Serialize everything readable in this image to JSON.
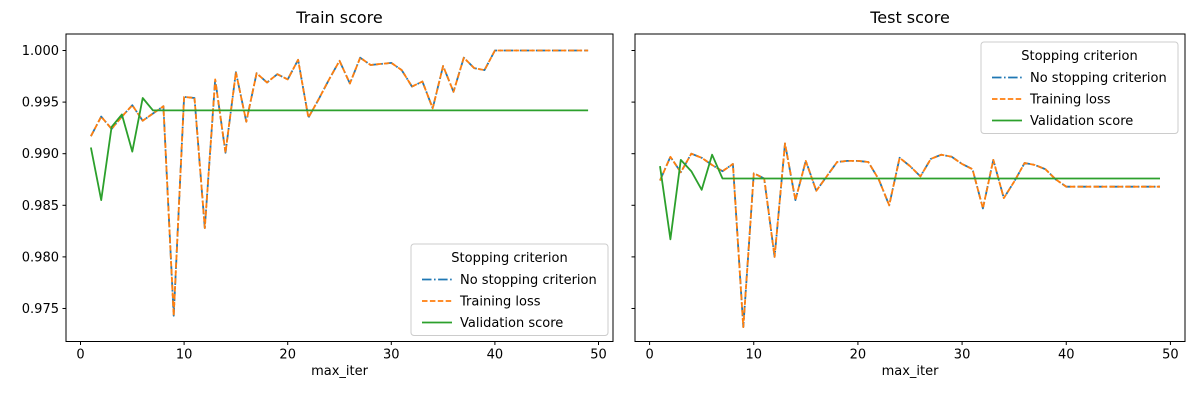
{
  "figure": {
    "background": "#ffffff",
    "text_color": "#000000",
    "spine_color": "#000000"
  },
  "chart_data": [
    {
      "type": "line",
      "title": "Train score",
      "xlabel": "max_iter",
      "ylabel": "",
      "grid": false,
      "xlim": [
        -1.4,
        51.4
      ],
      "ylim": [
        0.9718,
        1.0016
      ],
      "xticks": [
        0,
        10,
        20,
        30,
        40,
        50
      ],
      "yticks": [
        0.975,
        0.98,
        0.985,
        0.99,
        0.995,
        1.0
      ],
      "ytick_labels_visible": true,
      "legend": {
        "title": "Stopping criterion",
        "loc": "lower right"
      },
      "x": [
        1,
        2,
        3,
        4,
        5,
        6,
        7,
        8,
        9,
        10,
        11,
        12,
        13,
        14,
        15,
        16,
        17,
        18,
        19,
        20,
        21,
        22,
        23,
        24,
        25,
        26,
        27,
        28,
        29,
        30,
        31,
        32,
        33,
        34,
        35,
        36,
        37,
        38,
        39,
        40,
        41,
        42,
        43,
        44,
        45,
        46,
        47,
        48,
        49
      ],
      "series": [
        {
          "name": "No stopping criterion",
          "color": "#1f77b4",
          "linestyle": "dashdot",
          "values": [
            0.9917,
            0.9936,
            0.9924,
            0.9936,
            0.9947,
            0.9932,
            0.9939,
            0.9946,
            0.9743,
            0.9955,
            0.9954,
            0.9828,
            0.9972,
            0.9901,
            0.9979,
            0.9931,
            0.9978,
            0.9969,
            0.9977,
            0.9972,
            0.9991,
            0.9935,
            0.9953,
            0.9972,
            0.999,
            0.9968,
            0.9993,
            0.9986,
            0.9987,
            0.9988,
            0.9981,
            0.9965,
            0.997,
            0.9944,
            0.9985,
            0.996,
            0.9993,
            0.9983,
            0.9981,
            1.0,
            1.0,
            1.0,
            1.0,
            1.0,
            1.0,
            1.0,
            1.0,
            1.0,
            1.0
          ]
        },
        {
          "name": "Training loss",
          "color": "#ff7f0e",
          "linestyle": "dashed",
          "values": [
            0.9917,
            0.9936,
            0.9924,
            0.9936,
            0.9947,
            0.9932,
            0.9939,
            0.9946,
            0.9743,
            0.9955,
            0.9954,
            0.9828,
            0.9972,
            0.9901,
            0.9979,
            0.9931,
            0.9978,
            0.9969,
            0.9977,
            0.9972,
            0.9991,
            0.9935,
            0.9953,
            0.9972,
            0.999,
            0.9968,
            0.9993,
            0.9986,
            0.9987,
            0.9988,
            0.9981,
            0.9965,
            0.997,
            0.9944,
            0.9985,
            0.996,
            0.9993,
            0.9983,
            0.9981,
            1.0,
            1.0,
            1.0,
            1.0,
            1.0,
            1.0,
            1.0,
            1.0,
            1.0,
            1.0
          ]
        },
        {
          "name": "Validation score",
          "color": "#2ca02c",
          "linestyle": "solid",
          "values": [
            0.9906,
            0.9855,
            0.9926,
            0.9938,
            0.9902,
            0.9954,
            0.9942,
            0.9942,
            0.9942,
            0.9942,
            0.9942,
            0.9942,
            0.9942,
            0.9942,
            0.9942,
            0.9942,
            0.9942,
            0.9942,
            0.9942,
            0.9942,
            0.9942,
            0.9942,
            0.9942,
            0.9942,
            0.9942,
            0.9942,
            0.9942,
            0.9942,
            0.9942,
            0.9942,
            0.9942,
            0.9942,
            0.9942,
            0.9942,
            0.9942,
            0.9942,
            0.9942,
            0.9942,
            0.9942,
            0.9942,
            0.9942,
            0.9942,
            0.9942,
            0.9942,
            0.9942,
            0.9942,
            0.9942,
            0.9942,
            0.9942
          ]
        }
      ]
    },
    {
      "type": "line",
      "title": "Test score",
      "xlabel": "max_iter",
      "ylabel": "",
      "grid": false,
      "xlim": [
        -1.4,
        51.4
      ],
      "ylim": [
        0.9718,
        1.0016
      ],
      "xticks": [
        0,
        10,
        20,
        30,
        40,
        50
      ],
      "yticks": [
        0.975,
        0.98,
        0.985,
        0.99,
        0.995,
        1.0
      ],
      "ytick_labels_visible": false,
      "legend": {
        "title": "Stopping criterion",
        "loc": "upper right"
      },
      "x": [
        1,
        2,
        3,
        4,
        5,
        6,
        7,
        8,
        9,
        10,
        11,
        12,
        13,
        14,
        15,
        16,
        17,
        18,
        19,
        20,
        21,
        22,
        23,
        24,
        25,
        26,
        27,
        28,
        29,
        30,
        31,
        32,
        33,
        34,
        35,
        36,
        37,
        38,
        39,
        40,
        41,
        42,
        43,
        44,
        45,
        46,
        47,
        48,
        49
      ],
      "series": [
        {
          "name": "No stopping criterion",
          "color": "#1f77b4",
          "linestyle": "dashdot",
          "values": [
            0.9874,
            0.9897,
            0.9882,
            0.99,
            0.9896,
            0.9889,
            0.9883,
            0.989,
            0.9732,
            0.9881,
            0.9876,
            0.98,
            0.991,
            0.9855,
            0.9893,
            0.9864,
            0.9878,
            0.9892,
            0.9893,
            0.9893,
            0.9892,
            0.9875,
            0.985,
            0.9896,
            0.9888,
            0.9878,
            0.9895,
            0.9899,
            0.9897,
            0.989,
            0.9885,
            0.9847,
            0.9894,
            0.9857,
            0.9873,
            0.9891,
            0.9889,
            0.9885,
            0.9875,
            0.9868,
            0.9868,
            0.9868,
            0.9868,
            0.9868,
            0.9868,
            0.9868,
            0.9868,
            0.9868,
            0.9868
          ]
        },
        {
          "name": "Training loss",
          "color": "#ff7f0e",
          "linestyle": "dashed",
          "values": [
            0.9874,
            0.9897,
            0.9882,
            0.99,
            0.9896,
            0.9889,
            0.9883,
            0.989,
            0.9732,
            0.9881,
            0.9876,
            0.98,
            0.991,
            0.9855,
            0.9893,
            0.9864,
            0.9878,
            0.9892,
            0.9893,
            0.9893,
            0.9892,
            0.9875,
            0.985,
            0.9896,
            0.9888,
            0.9878,
            0.9895,
            0.9899,
            0.9897,
            0.989,
            0.9885,
            0.9847,
            0.9894,
            0.9857,
            0.9873,
            0.9891,
            0.9889,
            0.9885,
            0.9875,
            0.9868,
            0.9868,
            0.9868,
            0.9868,
            0.9868,
            0.9868,
            0.9868,
            0.9868,
            0.9868,
            0.9868
          ]
        },
        {
          "name": "Validation score",
          "color": "#2ca02c",
          "linestyle": "solid",
          "values": [
            0.9888,
            0.9817,
            0.9894,
            0.9883,
            0.9865,
            0.9899,
            0.9876,
            0.9876,
            0.9876,
            0.9876,
            0.9876,
            0.9876,
            0.9876,
            0.9876,
            0.9876,
            0.9876,
            0.9876,
            0.9876,
            0.9876,
            0.9876,
            0.9876,
            0.9876,
            0.9876,
            0.9876,
            0.9876,
            0.9876,
            0.9876,
            0.9876,
            0.9876,
            0.9876,
            0.9876,
            0.9876,
            0.9876,
            0.9876,
            0.9876,
            0.9876,
            0.9876,
            0.9876,
            0.9876,
            0.9876,
            0.9876,
            0.9876,
            0.9876,
            0.9876,
            0.9876,
            0.9876,
            0.9876,
            0.9876,
            0.9876
          ]
        }
      ]
    }
  ]
}
